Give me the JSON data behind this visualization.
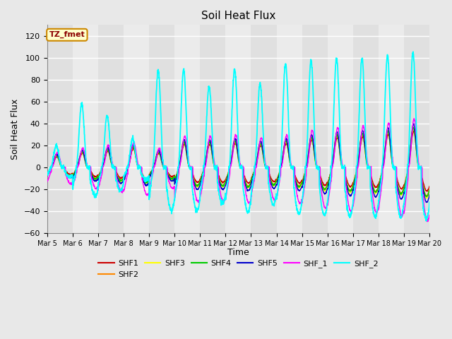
{
  "title": "Soil Heat Flux",
  "ylabel": "Soil Heat Flux",
  "xlabel": "Time",
  "ylim": [
    -60,
    130
  ],
  "yticks": [
    -60,
    -40,
    -20,
    0,
    20,
    40,
    60,
    80,
    100,
    120
  ],
  "plot_bg_color": "#e8e8e8",
  "series_colors": {
    "SHF1": "#cc0000",
    "SHF2": "#ff8800",
    "SHF3": "#ffff00",
    "SHF4": "#00cc00",
    "SHF5": "#0000cc",
    "SHF_1": "#ff00ff",
    "SHF_2": "#00ffff"
  },
  "legend_label": "TZ_fmet",
  "n_days": 15,
  "xtick_labels": [
    "Mar 5",
    "Mar 6",
    "Mar 7",
    "Mar 8",
    "Mar 9",
    "Mar 10",
    "Mar 11",
    "Mar 12",
    "Mar 13",
    "Mar 14",
    "Mar 15",
    "Mar 16",
    "Mar 17",
    "Mar 18",
    "Mar 19",
    "Mar 20"
  ],
  "points_per_day": 144
}
